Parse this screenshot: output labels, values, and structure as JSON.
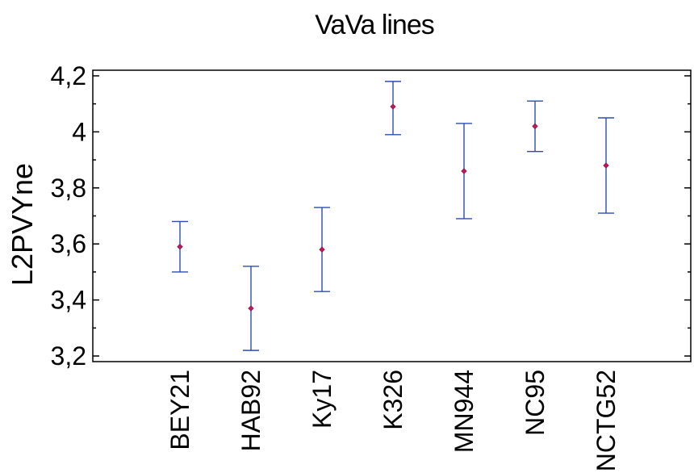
{
  "chart_data": {
    "type": "scatter",
    "title": "VaVa lines",
    "xlabel": "",
    "ylabel": "L2PVYne",
    "ylim": [
      3.18,
      4.22
    ],
    "yticks": [
      "3,2",
      "3,4",
      "3,6",
      "3,8",
      "4",
      "4,2"
    ],
    "ytick_values": [
      3.2,
      3.4,
      3.6,
      3.8,
      4.0,
      4.2
    ],
    "categories": [
      "BEY21",
      "HAB92",
      "Ky17",
      "K326",
      "MN944",
      "NC95",
      "NCTG52"
    ],
    "series": [
      {
        "mean": [
          3.59,
          3.37,
          3.58,
          4.09,
          3.86,
          4.02,
          3.88
        ],
        "lower": [
          3.5,
          3.22,
          3.43,
          3.99,
          3.69,
          3.93,
          3.71
        ],
        "upper": [
          3.68,
          3.52,
          3.73,
          4.18,
          4.03,
          4.11,
          4.05
        ]
      }
    ],
    "grid": false,
    "colors": {
      "errorbar": "#2a4db0",
      "marker": "#c0185c"
    }
  }
}
